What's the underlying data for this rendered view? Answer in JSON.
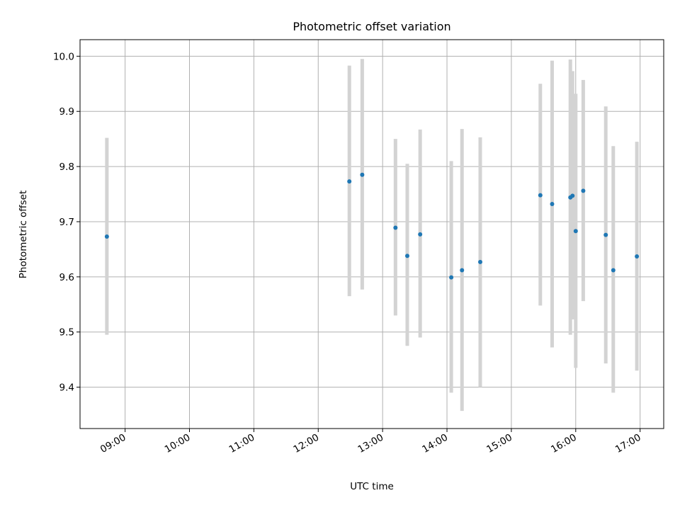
{
  "chart_data": {
    "type": "scatter",
    "title": "Photometric offset variation",
    "xlabel": "UTC time",
    "ylabel": "Photometric offset",
    "xlim": [
      "08:18",
      "17:22"
    ],
    "ylim": [
      9.325,
      10.03
    ],
    "grid": true,
    "x_ticks": [
      "09:00",
      "10:00",
      "11:00",
      "12:00",
      "13:00",
      "14:00",
      "15:00",
      "16:00",
      "17:00"
    ],
    "y_ticks": [
      "9.4",
      "9.5",
      "9.6",
      "9.7",
      "9.8",
      "9.9",
      "10.0"
    ],
    "colors": {
      "marker": "#1f77b4",
      "errorbar": "#d3d3d3",
      "grid": "#b0b0b0"
    },
    "series": [
      {
        "points": [
          {
            "x": "08:43",
            "y": 9.673,
            "err_low": 9.495,
            "err_high": 9.852
          },
          {
            "x": "12:29",
            "y": 9.773,
            "err_low": 9.565,
            "err_high": 9.983
          },
          {
            "x": "12:41",
            "y": 9.785,
            "err_low": 9.577,
            "err_high": 9.995
          },
          {
            "x": "13:12",
            "y": 9.689,
            "err_low": 9.53,
            "err_high": 9.85
          },
          {
            "x": "13:23",
            "y": 9.638,
            "err_low": 9.475,
            "err_high": 9.805
          },
          {
            "x": "13:35",
            "y": 9.677,
            "err_low": 9.49,
            "err_high": 9.867
          },
          {
            "x": "14:04",
            "y": 9.599,
            "err_low": 9.39,
            "err_high": 9.81
          },
          {
            "x": "14:14",
            "y": 9.612,
            "err_low": 9.357,
            "err_high": 9.868
          },
          {
            "x": "14:31",
            "y": 9.627,
            "err_low": 9.4,
            "err_high": 9.853
          },
          {
            "x": "15:27",
            "y": 9.748,
            "err_low": 9.548,
            "err_high": 9.95
          },
          {
            "x": "15:38",
            "y": 9.732,
            "err_low": 9.472,
            "err_high": 9.992
          },
          {
            "x": "15:55",
            "y": 9.744,
            "err_low": 9.495,
            "err_high": 9.994
          },
          {
            "x": "15:57",
            "y": 9.747,
            "err_low": 9.523,
            "err_high": 9.973
          },
          {
            "x": "16:00",
            "y": 9.683,
            "err_low": 9.435,
            "err_high": 9.932
          },
          {
            "x": "16:07",
            "y": 9.756,
            "err_low": 9.556,
            "err_high": 9.957
          },
          {
            "x": "16:28",
            "y": 9.676,
            "err_low": 9.443,
            "err_high": 9.909
          },
          {
            "x": "16:35",
            "y": 9.612,
            "err_low": 9.39,
            "err_high": 9.837
          },
          {
            "x": "16:57",
            "y": 9.637,
            "err_low": 9.43,
            "err_high": 9.845
          }
        ]
      }
    ]
  }
}
